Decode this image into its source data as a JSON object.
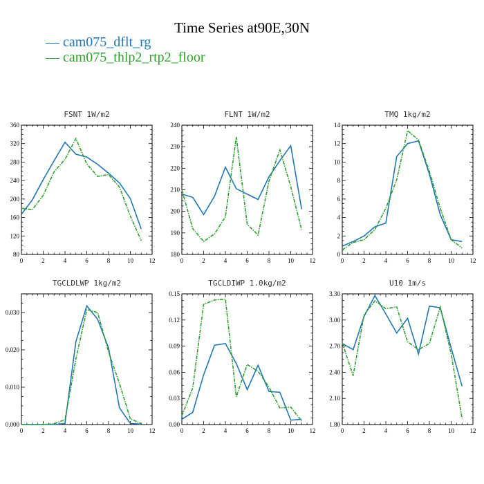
{
  "page": {
    "title": "Time Series at90E,30N"
  },
  "colors": {
    "series1": "#1f77b4",
    "series2": "#2ca02c"
  },
  "legend": [
    {
      "label": "— cam075_dflt_rg"
    },
    {
      "label": "— cam075_thlp2_rtp2_floor"
    }
  ],
  "chart_data": [
    {
      "type": "line",
      "title": "FSNT   1W/m2",
      "xlim": [
        0,
        12
      ],
      "ylim": [
        80,
        360
      ],
      "x_ticks": [
        "0",
        "2",
        "4",
        "6",
        "8",
        "10",
        "12"
      ],
      "y_ticks": [
        "80",
        "120",
        "160",
        "200",
        "240",
        "280",
        "320",
        "360"
      ],
      "x": [
        0,
        1,
        2,
        3,
        4,
        5,
        6,
        7,
        8,
        9,
        10,
        11
      ],
      "series": [
        {
          "values": [
            167,
            198,
            242,
            283,
            323,
            297,
            291,
            275,
            256,
            235,
            201,
            135
          ]
        },
        {
          "values": [
            180,
            177,
            208,
            259,
            286,
            331,
            276,
            249,
            253,
            226,
            163,
            110
          ]
        }
      ]
    },
    {
      "type": "line",
      "title": "FLNT   1W/m2",
      "xlim": [
        0,
        12
      ],
      "ylim": [
        180,
        240
      ],
      "x_ticks": [
        "0",
        "2",
        "4",
        "6",
        "8",
        "10",
        "12"
      ],
      "y_ticks": [
        "180",
        "190",
        "200",
        "210",
        "220",
        "230",
        "240"
      ],
      "x": [
        0,
        1,
        2,
        3,
        4,
        5,
        6,
        7,
        8,
        9,
        10,
        11
      ],
      "series": [
        {
          "values": [
            208,
            206.5,
            198.5,
            207,
            220.5,
            210.5,
            208,
            205.5,
            216,
            223.5,
            230.5,
            201
          ]
        },
        {
          "values": [
            210,
            192,
            186,
            189.5,
            197.5,
            234.5,
            194,
            189,
            214,
            228.5,
            211.5,
            191.5
          ]
        }
      ]
    },
    {
      "type": "line",
      "title": "TMQ   1kg/m2",
      "xlim": [
        0,
        12
      ],
      "ylim": [
        0,
        14
      ],
      "x_ticks": [
        "0",
        "2",
        "4",
        "6",
        "8",
        "10",
        "12"
      ],
      "y_ticks": [
        "0",
        "2",
        "4",
        "6",
        "8",
        "10",
        "12",
        "14"
      ],
      "x": [
        0,
        1,
        2,
        3,
        4,
        5,
        6,
        7,
        8,
        9,
        10,
        11
      ],
      "series": [
        {
          "values": [
            0.9,
            1.4,
            2.0,
            3.0,
            3.4,
            10.6,
            12.0,
            12.3,
            8.7,
            4.3,
            1.6,
            1.4
          ]
        },
        {
          "values": [
            0.5,
            1.3,
            1.6,
            2.7,
            5.0,
            8.1,
            13.4,
            12.4,
            9.0,
            5.0,
            1.6,
            0.7
          ]
        }
      ]
    },
    {
      "type": "line",
      "title": "TGCLDLWP   1kg/m2",
      "xlim": [
        0,
        12
      ],
      "ylim": [
        0,
        0.035
      ],
      "x_ticks": [
        "0",
        "2",
        "4",
        "6",
        "8",
        "10",
        "12"
      ],
      "y_ticks": [
        "0.000",
        "0.010",
        "0.020",
        "0.030"
      ],
      "x": [
        0,
        1,
        2,
        3,
        4,
        5,
        6,
        7,
        8,
        9,
        10,
        11
      ],
      "series": [
        {
          "values": [
            0.0,
            0.0,
            0.0,
            0.0,
            0.0003,
            0.0222,
            0.0318,
            0.0282,
            0.0205,
            0.0045,
            0.0003,
            0.0001
          ]
        },
        {
          "values": [
            0.0,
            0.0,
            0.0,
            0.0002,
            0.0013,
            0.0175,
            0.0308,
            0.03,
            0.0195,
            0.011,
            0.0015,
            0.0003
          ]
        }
      ]
    },
    {
      "type": "line",
      "title": "TGCLDIWP   1.0kg/m2",
      "xlim": [
        0,
        12
      ],
      "ylim": [
        0,
        0.15
      ],
      "x_ticks": [
        "0",
        "2",
        "4",
        "6",
        "8",
        "10",
        "12"
      ],
      "y_ticks": [
        "0.00",
        "0.03",
        "0.06",
        "0.09",
        "0.12",
        "0.15"
      ],
      "x": [
        0,
        1,
        2,
        3,
        4,
        5,
        6,
        7,
        8,
        9,
        10,
        11
      ],
      "series": [
        {
          "values": [
            0.006,
            0.014,
            0.057,
            0.091,
            0.093,
            0.07,
            0.04,
            0.068,
            0.038,
            0.037,
            0.005,
            0.006
          ]
        },
        {
          "values": [
            0.01,
            0.042,
            0.138,
            0.143,
            0.144,
            0.032,
            0.069,
            0.061,
            0.043,
            0.019,
            0.02,
            0.004
          ]
        }
      ]
    },
    {
      "type": "line",
      "title": "U10   1m/s",
      "xlim": [
        0,
        12
      ],
      "ylim": [
        1.8,
        3.3
      ],
      "x_ticks": [
        "0",
        "2",
        "4",
        "6",
        "8",
        "10",
        "12"
      ],
      "y_ticks": [
        "1.80",
        "2.10",
        "2.40",
        "2.70",
        "3.00",
        "3.30"
      ],
      "x": [
        0,
        1,
        2,
        3,
        4,
        5,
        6,
        7,
        8,
        9,
        10,
        11
      ],
      "series": [
        {
          "values": [
            2.73,
            2.66,
            3.04,
            3.28,
            3.07,
            2.85,
            3.02,
            2.61,
            3.16,
            3.14,
            2.68,
            2.24
          ]
        },
        {
          "values": [
            2.74,
            2.36,
            3.06,
            3.22,
            3.13,
            3.15,
            2.75,
            2.66,
            2.73,
            3.15,
            2.61,
            1.87
          ]
        }
      ]
    }
  ]
}
